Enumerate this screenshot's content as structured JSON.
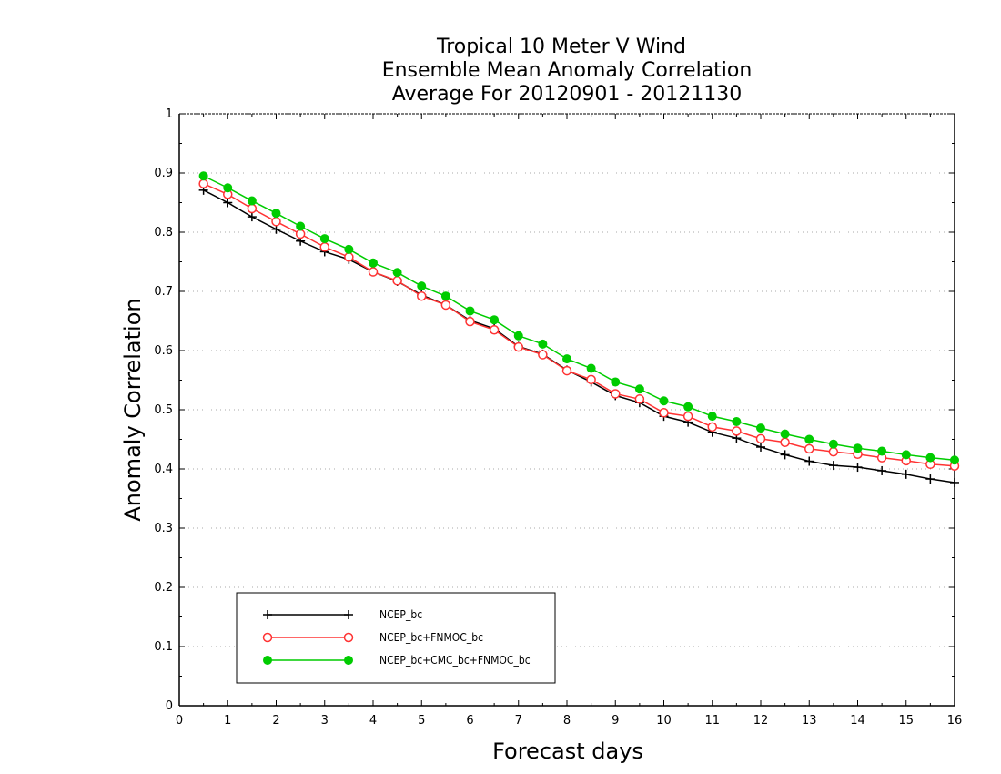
{
  "chart_data": {
    "type": "line",
    "title": [
      "Tropical 10 Meter V Wind",
      "Ensemble Mean Anomaly Correlation",
      "Average For 20120901 - 20121130"
    ],
    "xlabel": "Forecast days",
    "ylabel": "Anomaly Correlation",
    "xlim": [
      0,
      16
    ],
    "ylim": [
      0,
      1
    ],
    "xticks": [
      "0",
      "1",
      "2",
      "3",
      "4",
      "5",
      "6",
      "7",
      "8",
      "9",
      "10",
      "11",
      "12",
      "13",
      "14",
      "15",
      "16"
    ],
    "yticks": [
      "0",
      "0.1",
      "0.2",
      "0.3",
      "0.4",
      "0.5",
      "0.6",
      "0.7",
      "0.8",
      "0.9",
      "1"
    ],
    "grid": "horizontal dotted",
    "legend_position": "bottom-left",
    "x": [
      0.5,
      1,
      1.5,
      2,
      2.5,
      3,
      3.5,
      4,
      4.5,
      5,
      5.5,
      6,
      6.5,
      7,
      7.5,
      8,
      8.5,
      9,
      9.5,
      10,
      10.5,
      11,
      11.5,
      12,
      12.5,
      13,
      13.5,
      14,
      14.5,
      15,
      15.5,
      16
    ],
    "series": [
      {
        "name": "NCEP_bc",
        "color": "#000000",
        "marker": "plus",
        "values": [
          0.871,
          0.85,
          0.826,
          0.805,
          0.785,
          0.767,
          0.754,
          0.733,
          0.717,
          0.694,
          0.677,
          0.651,
          0.637,
          0.607,
          0.594,
          0.567,
          0.547,
          0.524,
          0.512,
          0.489,
          0.479,
          0.462,
          0.452,
          0.437,
          0.424,
          0.413,
          0.406,
          0.403,
          0.397,
          0.391,
          0.383,
          0.377
        ]
      },
      {
        "name": "NCEP_bc+FNMOC_bc",
        "color": "#ff3333",
        "marker": "open-circle",
        "values": [
          0.882,
          0.864,
          0.84,
          0.818,
          0.797,
          0.775,
          0.758,
          0.733,
          0.718,
          0.692,
          0.677,
          0.649,
          0.635,
          0.606,
          0.593,
          0.566,
          0.551,
          0.527,
          0.518,
          0.495,
          0.489,
          0.471,
          0.464,
          0.451,
          0.445,
          0.434,
          0.429,
          0.425,
          0.419,
          0.414,
          0.408,
          0.405
        ]
      },
      {
        "name": "NCEP_bc+CMC_bc+FNMOC_bc",
        "color": "#00cc00",
        "marker": "filled-circle",
        "values": [
          0.895,
          0.875,
          0.853,
          0.832,
          0.81,
          0.789,
          0.771,
          0.748,
          0.732,
          0.709,
          0.692,
          0.667,
          0.652,
          0.625,
          0.611,
          0.586,
          0.57,
          0.547,
          0.535,
          0.515,
          0.505,
          0.489,
          0.48,
          0.469,
          0.459,
          0.45,
          0.442,
          0.435,
          0.43,
          0.424,
          0.419,
          0.415
        ]
      }
    ]
  }
}
